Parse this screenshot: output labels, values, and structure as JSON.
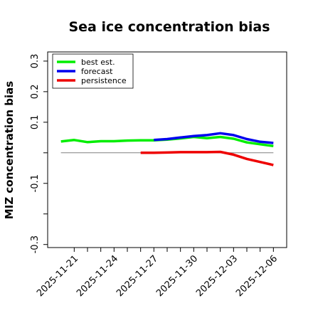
{
  "chart_data": {
    "type": "line",
    "title": "Sea ice concentration bias",
    "ylabel": "MIZ concentration bias",
    "xlabel": "",
    "ylim": [
      -0.31,
      0.33
    ],
    "yticks": [
      -0.3,
      -0.2,
      -0.1,
      0.0,
      0.1,
      0.2,
      0.3
    ],
    "ytick_labels": [
      "-0.3",
      "",
      "-0.1",
      "",
      "0.1",
      "0.2",
      "0.3"
    ],
    "xlim": [
      "2025-11-19",
      "2025-12-07"
    ],
    "xticks": [
      "2025-11-21",
      "2025-11-22",
      "2025-11-23",
      "2025-11-24",
      "2025-11-25",
      "2025-11-26",
      "2025-11-27",
      "2025-11-28",
      "2025-11-29",
      "2025-11-30",
      "2025-12-01",
      "2025-12-02",
      "2025-12-03",
      "2025-12-04",
      "2025-12-05",
      "2025-12-06"
    ],
    "xtick_labels": [
      "2025-11-21",
      "",
      "",
      "2025-11-24",
      "",
      "",
      "2025-11-27",
      "",
      "",
      "2025-11-30",
      "",
      "",
      "2025-12-03",
      "",
      "",
      "2025-12-06"
    ],
    "highlighted_tick": "2025-11-27",
    "highlight_color": "#228B22",
    "hline": 0.0,
    "hline_color": "#808080",
    "legend_position": "top-left",
    "series": [
      {
        "name": "best est.",
        "color": "#00ee00",
        "x": [
          "2025-11-20",
          "2025-11-21",
          "2025-11-22",
          "2025-11-23",
          "2025-11-24",
          "2025-11-25",
          "2025-11-26",
          "2025-11-27",
          "2025-11-28",
          "2025-11-29",
          "2025-11-30",
          "2025-12-01",
          "2025-12-02",
          "2025-12-03",
          "2025-12-04",
          "2025-12-05",
          "2025-12-06"
        ],
        "y": [
          0.037,
          0.042,
          0.035,
          0.038,
          0.038,
          0.04,
          0.041,
          0.041,
          0.043,
          0.047,
          0.052,
          0.048,
          0.052,
          0.046,
          0.034,
          0.028,
          0.022
        ]
      },
      {
        "name": "forecast",
        "color": "#0000ee",
        "x": [
          "2025-11-27",
          "2025-11-28",
          "2025-11-29",
          "2025-11-30",
          "2025-12-01",
          "2025-12-02",
          "2025-12-03",
          "2025-12-04",
          "2025-12-05",
          "2025-12-06"
        ],
        "y": [
          0.042,
          0.045,
          0.05,
          0.055,
          0.058,
          0.064,
          0.058,
          0.045,
          0.036,
          0.032
        ]
      },
      {
        "name": "persistence",
        "color": "#ee0000",
        "x": [
          "2025-11-26",
          "2025-11-27",
          "2025-11-28",
          "2025-11-29",
          "2025-11-30",
          "2025-12-01",
          "2025-12-02",
          "2025-12-03",
          "2025-12-04",
          "2025-12-05",
          "2025-12-06"
        ],
        "y": [
          0.0,
          0.0,
          0.001,
          0.002,
          0.002,
          0.002,
          0.003,
          -0.006,
          -0.02,
          -0.03,
          -0.04
        ]
      }
    ]
  }
}
